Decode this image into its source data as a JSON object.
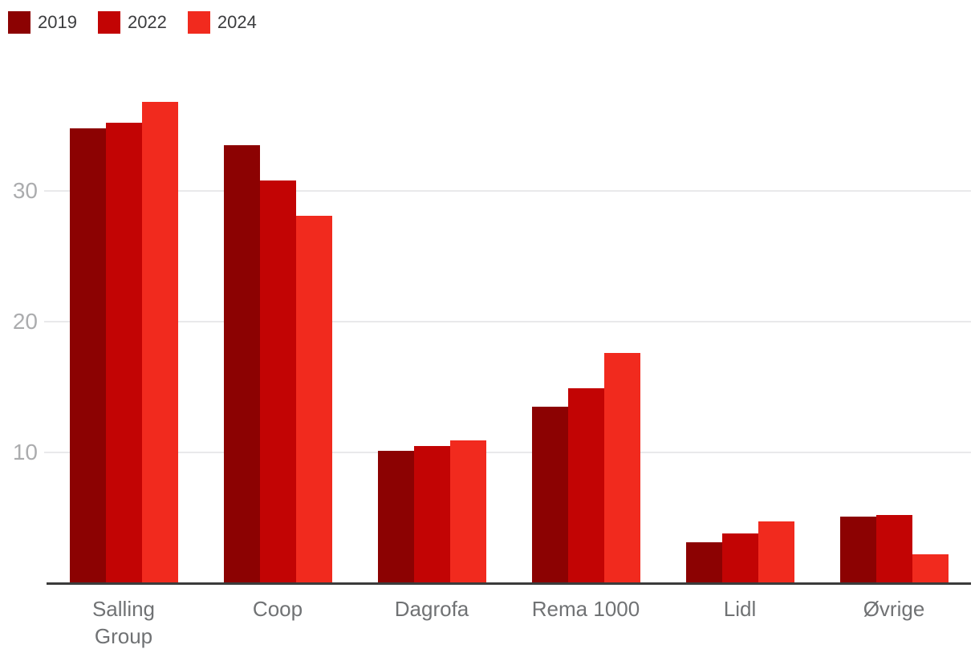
{
  "chart_data": {
    "type": "bar",
    "title": "",
    "xlabel": "",
    "ylabel": "",
    "categories": [
      "Salling Group",
      "Coop",
      "Dagrofa",
      "Rema 1000",
      "Lidl",
      "Øvrige"
    ],
    "series": [
      {
        "name": "2019",
        "color": "#8c0202",
        "values": [
          34.8,
          33.5,
          10.1,
          13.5,
          3.1,
          5.1
        ]
      },
      {
        "name": "2022",
        "color": "#c20404",
        "values": [
          35.2,
          30.8,
          10.5,
          14.9,
          3.8,
          5.2
        ]
      },
      {
        "name": "2024",
        "color": "#f12a1e",
        "values": [
          36.8,
          28.1,
          10.9,
          17.6,
          4.7,
          2.2
        ]
      }
    ],
    "y_ticks": [
      10,
      20,
      30
    ],
    "ylim": [
      0,
      40
    ],
    "grid": true,
    "legend_position": "top-left"
  },
  "colors": {
    "background": "#ffffff",
    "axis_line": "#3b3b3b",
    "gridline": "#e9e9eb",
    "y_tick_label": "#abacae",
    "x_tick_label": "#707274",
    "legend_label": "#3b3c3e"
  }
}
